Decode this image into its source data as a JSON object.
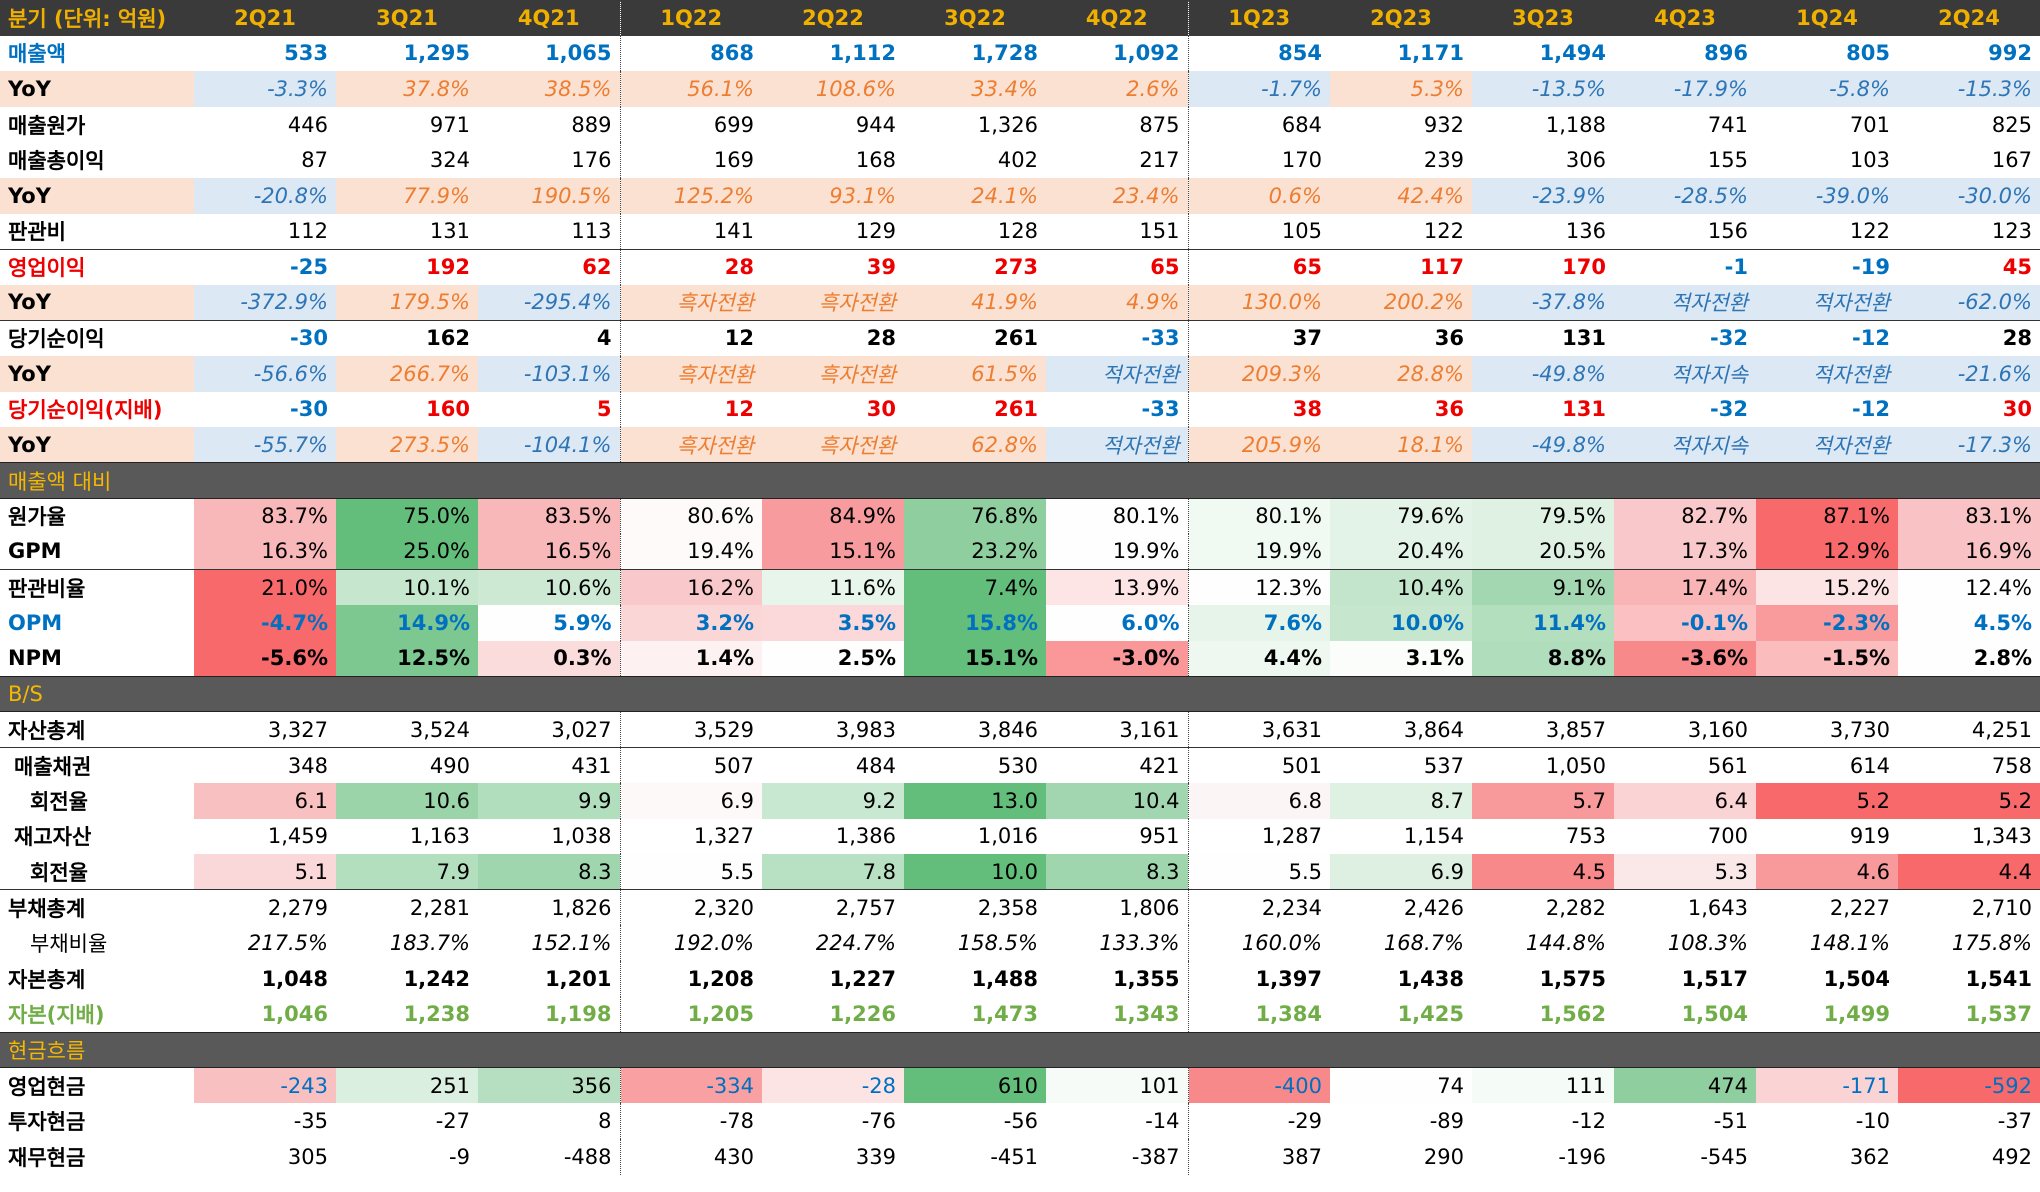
{
  "columns": [
    "분기 (단위: 억원)",
    "2Q21",
    "3Q21",
    "4Q21",
    "1Q22",
    "2Q22",
    "3Q22",
    "4Q22",
    "1Q23",
    "2Q23",
    "3Q23",
    "4Q23",
    "1Q24",
    "2Q24"
  ],
  "colors": {
    "header_bg": "#3a3a3a",
    "header_text": "#f0b000",
    "section_bg": "#595959",
    "section_text": "#f5b800",
    "blue": "#0070c0",
    "red": "#ee0000",
    "green": "#70ad47",
    "orange": "#ed7d31"
  },
  "rows": [
    {
      "label": "매출액",
      "cls": "",
      "lcls": "blue bold",
      "vcls": "blue bold",
      "values": [
        "533",
        "1,295",
        "1,065",
        "868",
        "1,112",
        "1,728",
        "1,092",
        "854",
        "1,171",
        "1,494",
        "896",
        "805",
        "992"
      ]
    },
    {
      "label": "YoY",
      "cls": "yoy",
      "values": [
        "-3.3%",
        "37.8%",
        "38.5%",
        "56.1%",
        "108.6%",
        "33.4%",
        "2.6%",
        "-1.7%",
        "5.3%",
        "-13.5%",
        "-17.9%",
        "-5.8%",
        "-15.3%"
      ],
      "cc": [
        "yb",
        "",
        "",
        "",
        "",
        "",
        "",
        "yb",
        "",
        "yb",
        "yb",
        "yb",
        "yb"
      ]
    },
    {
      "label": "매출원가",
      "cls": "",
      "lcls": "bold",
      "vcls": "",
      "values": [
        "446",
        "971",
        "889",
        "699",
        "944",
        "1,326",
        "875",
        "684",
        "932",
        "1,188",
        "741",
        "701",
        "825"
      ]
    },
    {
      "label": "매출총이익",
      "cls": "",
      "lcls": "bold",
      "vcls": "",
      "values": [
        "87",
        "324",
        "176",
        "169",
        "168",
        "402",
        "217",
        "170",
        "239",
        "306",
        "155",
        "103",
        "167"
      ]
    },
    {
      "label": "YoY",
      "cls": "yoy",
      "values": [
        "-20.8%",
        "77.9%",
        "190.5%",
        "125.2%",
        "93.1%",
        "24.1%",
        "23.4%",
        "0.6%",
        "42.4%",
        "-23.9%",
        "-28.5%",
        "-39.0%",
        "-30.0%"
      ],
      "cc": [
        "yb",
        "",
        "",
        "",
        "",
        "",
        "",
        "",
        "",
        "yb",
        "yb",
        "yb",
        "yb"
      ]
    },
    {
      "label": "판관비",
      "cls": "",
      "lcls": "bold",
      "vcls": "",
      "values": [
        "112",
        "131",
        "113",
        "141",
        "129",
        "128",
        "151",
        "105",
        "122",
        "136",
        "156",
        "122",
        "123"
      ]
    },
    {
      "label": "영업이익",
      "cls": "topline",
      "lcls": "red bold",
      "vcls": "bold",
      "values": [
        "-25",
        "192",
        "62",
        "28",
        "39",
        "273",
        "65",
        "65",
        "117",
        "170",
        "-1",
        "-19",
        "45"
      ],
      "vc": [
        "blue",
        "red",
        "red",
        "red",
        "red",
        "red",
        "red",
        "red",
        "red",
        "red",
        "blue",
        "blue",
        "red"
      ]
    },
    {
      "label": "YoY",
      "cls": "yoy",
      "values": [
        "-372.9%",
        "179.5%",
        "-295.4%",
        "흑자전환",
        "흑자전환",
        "41.9%",
        "4.9%",
        "130.0%",
        "200.2%",
        "-37.8%",
        "적자전환",
        "적자전환",
        "-62.0%"
      ],
      "cc": [
        "yb",
        "",
        "yb",
        "",
        "",
        "",
        "",
        "",
        "",
        "yb",
        "yb",
        "yb",
        "yb"
      ]
    },
    {
      "label": "당기순이익",
      "cls": "topline",
      "lcls": "bold",
      "vcls": "bold",
      "values": [
        "-30",
        "162",
        "4",
        "12",
        "28",
        "261",
        "-33",
        "37",
        "36",
        "131",
        "-32",
        "-12",
        "28"
      ],
      "vc": [
        "blue",
        "",
        "",
        "",
        "",
        "",
        "blue",
        "",
        "",
        "",
        "blue",
        "blue",
        ""
      ]
    },
    {
      "label": "YoY",
      "cls": "yoy",
      "values": [
        "-56.6%",
        "266.7%",
        "-103.1%",
        "흑자전환",
        "흑자전환",
        "61.5%",
        "적자전환",
        "209.3%",
        "28.8%",
        "-49.8%",
        "적자지속",
        "적자전환",
        "-21.6%"
      ],
      "cc": [
        "yb",
        "",
        "yb",
        "",
        "",
        "",
        "yb",
        "",
        "",
        "yb",
        "yb",
        "yb",
        "yb"
      ]
    },
    {
      "label": "당기순이익(지배)",
      "cls": "",
      "lcls": "red bold",
      "vcls": "bold",
      "values": [
        "-30",
        "160",
        "5",
        "12",
        "30",
        "261",
        "-33",
        "38",
        "36",
        "131",
        "-32",
        "-12",
        "30"
      ],
      "vc": [
        "blue",
        "red",
        "red",
        "red",
        "red",
        "red",
        "blue",
        "red",
        "red",
        "red",
        "blue",
        "blue",
        "red"
      ]
    },
    {
      "label": "YoY",
      "cls": "yoy",
      "values": [
        "-55.7%",
        "273.5%",
        "-104.1%",
        "흑자전환",
        "흑자전환",
        "62.8%",
        "적자전환",
        "205.9%",
        "18.1%",
        "-49.8%",
        "적자지속",
        "적자전환",
        "-17.3%"
      ],
      "cc": [
        "yb",
        "",
        "yb",
        "",
        "",
        "",
        "yb",
        "",
        "",
        "yb",
        "yb",
        "yb",
        "yb"
      ]
    },
    {
      "label": "매출액 대비",
      "cls": "sec",
      "section": true
    },
    {
      "label": "원가율",
      "cls": "",
      "lcls": "bold",
      "vcls": "",
      "values": [
        "83.7%",
        "75.0%",
        "83.5%",
        "80.6%",
        "84.9%",
        "76.8%",
        "80.1%",
        "80.1%",
        "79.6%",
        "79.5%",
        "82.7%",
        "87.1%",
        "83.1%"
      ],
      "bg": [
        "#f8b7b9",
        "#63be7b",
        "#f8b7b9",
        "#fefafa",
        "#f89b9e",
        "#8fcf9f",
        "#fefefe",
        "#f1f9f3",
        "#e3f3e7",
        "#dff1e3",
        "#f9c8ca",
        "#f8696b",
        "#f9c3c5"
      ]
    },
    {
      "label": "GPM",
      "cls": "",
      "lcls": "bold",
      "vcls": "",
      "values": [
        "16.3%",
        "25.0%",
        "16.5%",
        "19.4%",
        "15.1%",
        "23.2%",
        "19.9%",
        "19.9%",
        "20.4%",
        "20.5%",
        "17.3%",
        "12.9%",
        "16.9%"
      ],
      "bg": [
        "#f8b7b9",
        "#63be7b",
        "#f8b7b9",
        "#fefafa",
        "#f89b9e",
        "#8fcf9f",
        "#fefefe",
        "#f1f9f3",
        "#e3f3e7",
        "#dff1e3",
        "#f9c8ca",
        "#f8696b",
        "#f9c3c5"
      ]
    },
    {
      "label": "판관비율",
      "cls": "topline",
      "lcls": "bold",
      "vcls": "",
      "values": [
        "21.0%",
        "10.1%",
        "10.6%",
        "16.2%",
        "11.6%",
        "7.4%",
        "13.9%",
        "12.3%",
        "10.4%",
        "9.1%",
        "17.4%",
        "15.2%",
        "12.4%"
      ],
      "bg": [
        "#f8696b",
        "#c6e7ce",
        "#cde9d4",
        "#f9c8ca",
        "#e8f5eb",
        "#63be7b",
        "#fde5e6",
        "#fefefe",
        "#c2e5cb",
        "#a3d7b1",
        "#f9b4b6",
        "#fce4e4",
        "#fefefe"
      ]
    },
    {
      "label": "OPM",
      "cls": "",
      "lcls": "blue bold",
      "vcls": "bold blue",
      "values": [
        "-4.7%",
        "14.9%",
        "5.9%",
        "3.2%",
        "3.5%",
        "15.8%",
        "6.0%",
        "7.6%",
        "10.0%",
        "11.4%",
        "-0.1%",
        "-2.3%",
        "4.5%"
      ],
      "bg": [
        "#f8696b",
        "#7dc791",
        "#fefefe",
        "#fbd6d7",
        "#fbd8d9",
        "#63be7b",
        "#fefefe",
        "#e7f4ea",
        "#c6e7ce",
        "#b4dfbf",
        "#fac0c2",
        "#f99a9c",
        "#fefefe"
      ]
    },
    {
      "label": "NPM",
      "cls": "",
      "lcls": "bold",
      "vcls": "bold",
      "values": [
        "-5.6%",
        "12.5%",
        "0.3%",
        "1.4%",
        "2.5%",
        "15.1%",
        "-3.0%",
        "4.4%",
        "3.1%",
        "8.8%",
        "-3.6%",
        "-1.5%",
        "2.8%"
      ],
      "bg": [
        "#f8696b",
        "#7dc791",
        "#fbdcdd",
        "#fef1f1",
        "#fefefe",
        "#63be7b",
        "#f99799",
        "#eef8f1",
        "#fbfdfb",
        "#b0ddbc",
        "#f8898b",
        "#fbbcbe",
        "#fefefe"
      ]
    },
    {
      "label": "B/S",
      "cls": "sec",
      "section": true
    },
    {
      "label": "자산총계",
      "cls": "",
      "lcls": "bold",
      "vcls": "",
      "values": [
        "3,327",
        "3,524",
        "3,027",
        "3,529",
        "3,983",
        "3,846",
        "3,161",
        "3,631",
        "3,864",
        "3,857",
        "3,160",
        "3,730",
        "4,251"
      ]
    },
    {
      "label": "매출채권",
      "cls": "topline",
      "lcls": "bold ind1",
      "vcls": "",
      "values": [
        "348",
        "490",
        "431",
        "507",
        "484",
        "530",
        "421",
        "501",
        "537",
        "1,050",
        "561",
        "614",
        "758"
      ]
    },
    {
      "label": "회전율",
      "cls": "",
      "lcls": "bold ind2",
      "vcls": "",
      "values": [
        "6.1",
        "10.6",
        "9.9",
        "6.9",
        "9.2",
        "13.0",
        "10.4",
        "6.8",
        "8.7",
        "5.7",
        "6.4",
        "5.2",
        "5.2"
      ],
      "bg": [
        "#f9c0c2",
        "#9cd4aa",
        "#b1debc",
        "#fef9f9",
        "#c9e8d1",
        "#63be7b",
        "#a2d6b0",
        "#fbf5f6",
        "#dff1e3",
        "#f8999b",
        "#fad3d4",
        "#f8696b",
        "#f8696b"
      ]
    },
    {
      "label": "재고자산",
      "cls": "",
      "lcls": "bold ind1",
      "vcls": "",
      "values": [
        "1,459",
        "1,163",
        "1,038",
        "1,327",
        "1,386",
        "1,016",
        "951",
        "1,287",
        "1,154",
        "753",
        "700",
        "919",
        "1,343"
      ]
    },
    {
      "label": "회전율",
      "cls": "",
      "lcls": "bold ind2",
      "vcls": "",
      "values": [
        "5.1",
        "7.9",
        "8.3",
        "5.5",
        "7.8",
        "10.0",
        "8.3",
        "5.5",
        "6.9",
        "4.5",
        "5.3",
        "4.6",
        "4.4"
      ],
      "bg": [
        "#fad8d9",
        "#b3dfbe",
        "#a0d6ae",
        "#fefefe",
        "#b8e0c2",
        "#63be7b",
        "#a0d6ae",
        "#fefefe",
        "#ddf0e2",
        "#f8898b",
        "#fae8e9",
        "#f8999b",
        "#f8696b"
      ]
    },
    {
      "label": "부채총계",
      "cls": "topline",
      "lcls": "bold",
      "vcls": "",
      "values": [
        "2,279",
        "2,281",
        "1,826",
        "2,320",
        "2,757",
        "2,358",
        "1,806",
        "2,234",
        "2,426",
        "2,282",
        "1,643",
        "2,227",
        "2,710"
      ]
    },
    {
      "label": "부채비율",
      "cls": "",
      "lcls": "ind2",
      "vcls": "ital",
      "values": [
        "217.5%",
        "183.7%",
        "152.1%",
        "192.0%",
        "224.7%",
        "158.5%",
        "133.3%",
        "160.0%",
        "168.7%",
        "144.8%",
        "108.3%",
        "148.1%",
        "175.8%"
      ]
    },
    {
      "label": "자본총계",
      "cls": "",
      "lcls": "bold",
      "vcls": "bold",
      "values": [
        "1,048",
        "1,242",
        "1,201",
        "1,208",
        "1,227",
        "1,488",
        "1,355",
        "1,397",
        "1,438",
        "1,575",
        "1,517",
        "1,504",
        "1,541"
      ]
    },
    {
      "label": "자본(지배)",
      "cls": "",
      "lcls": "green bold",
      "vcls": "green bold",
      "values": [
        "1,046",
        "1,238",
        "1,198",
        "1,205",
        "1,226",
        "1,473",
        "1,343",
        "1,384",
        "1,425",
        "1,562",
        "1,504",
        "1,499",
        "1,537"
      ]
    },
    {
      "label": "현금흐름",
      "cls": "sec",
      "section": true
    },
    {
      "label": "영업현금",
      "cls": "",
      "lcls": "bold",
      "vcls": "",
      "values": [
        "-243",
        "251",
        "356",
        "-334",
        "-28",
        "610",
        "101",
        "-400",
        "74",
        "111",
        "474",
        "-171",
        "-592"
      ],
      "bg": [
        "#f9c0c2",
        "#dbefe0",
        "#b5dfc0",
        "#f8a0a2",
        "#fce3e4",
        "#63be7b",
        "#f6fbf7",
        "#f8898b",
        "#fefefe",
        "#f5fbf7",
        "#8fcf9f",
        "#fad4d5",
        "#f8696b"
      ],
      "vc": [
        "blue",
        "",
        "",
        "blue",
        "blue",
        "",
        "",
        "blue",
        "",
        "",
        "",
        "blue",
        "blue"
      ]
    },
    {
      "label": "투자현금",
      "cls": "",
      "lcls": "bold",
      "vcls": "",
      "values": [
        "-35",
        "-27",
        "8",
        "-78",
        "-76",
        "-56",
        "-14",
        "-29",
        "-89",
        "-12",
        "-51",
        "-10",
        "-37"
      ]
    },
    {
      "label": "재무현금",
      "cls": "",
      "lcls": "bold",
      "vcls": "",
      "values": [
        "305",
        "-9",
        "-488",
        "430",
        "339",
        "-451",
        "-387",
        "387",
        "290",
        "-196",
        "-545",
        "362",
        "492"
      ]
    }
  ]
}
